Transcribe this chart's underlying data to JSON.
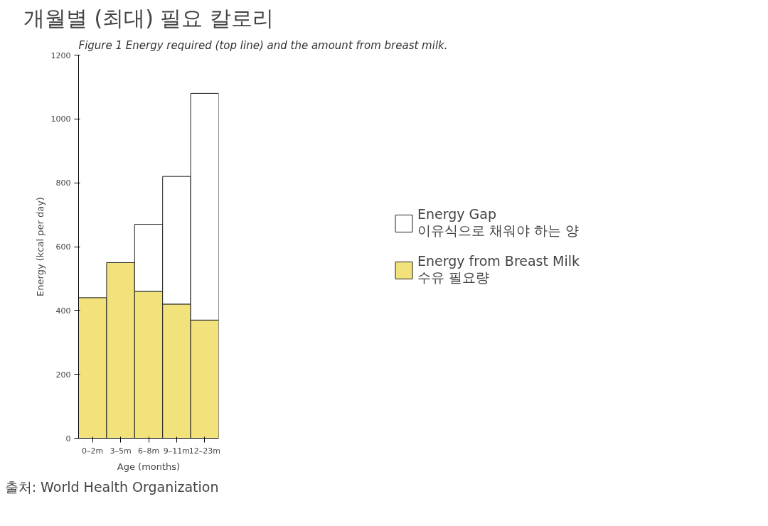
{
  "chart_data": {
    "type": "bar",
    "title": "개월별 (최대) 필요 칼로리",
    "subtitle": "Figure 1   Energy required (top line) and the amount from breast milk.",
    "xlabel": "Age (months)",
    "ylabel": "Energy (kcal per day)",
    "categories": [
      "0–2m",
      "3–5m",
      "6–8m",
      "9–11m",
      "12–23m"
    ],
    "stacked": true,
    "series": [
      {
        "name": "Energy from Breast Milk\n수유 필요량",
        "color": "#f2e27c",
        "values": [
          440,
          550,
          460,
          420,
          370
        ]
      },
      {
        "name": "Energy Gap\n이유식으로 채워야 하는 양",
        "color": "#ffffff",
        "values": [
          null,
          null,
          210,
          400,
          710
        ]
      }
    ],
    "ylim": [
      0,
      1200
    ],
    "yticks": [
      0,
      200,
      400,
      600,
      800,
      1000,
      1200
    ],
    "grid": false,
    "legend": "right",
    "annotations": [
      "출처: World Health Organization"
    ]
  }
}
